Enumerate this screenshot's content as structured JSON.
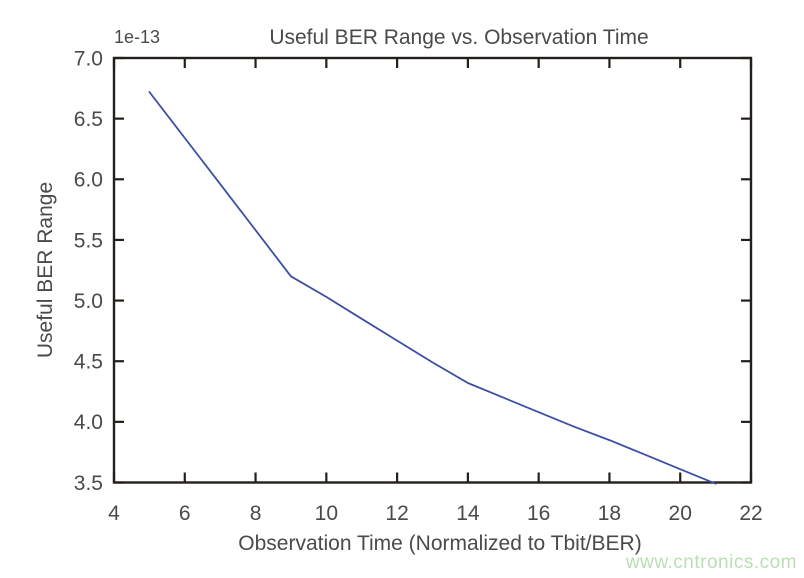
{
  "chart_data": {
    "type": "line",
    "title": "Useful BER Range vs. Observation Time",
    "xlabel": "Observation Time (Normalized to Tbit/BER)",
    "ylabel": "Useful BER Range",
    "y_offset_text": "1e-13",
    "xlim": [
      4,
      22
    ],
    "ylim": [
      3.5,
      7.0
    ],
    "x_ticks": [
      4,
      6,
      8,
      10,
      12,
      14,
      16,
      18,
      20,
      22
    ],
    "x_tick_labels": [
      "4",
      "6",
      "8",
      "10",
      "12",
      "14",
      "16",
      "18",
      "20",
      "22"
    ],
    "y_ticks": [
      3.5,
      4.0,
      4.5,
      5.0,
      5.5,
      6.0,
      6.5,
      7.0
    ],
    "y_tick_labels": [
      "3.5",
      "4.0",
      "4.5",
      "5.0",
      "5.5",
      "6.0",
      "6.5",
      "7.0"
    ],
    "grid": false,
    "legend": "none",
    "series": [
      {
        "name": "Useful BER Range",
        "x": [
          5,
          6,
          7,
          8,
          9,
          10,
          11,
          12,
          13,
          14,
          15,
          16,
          17,
          18,
          19,
          20,
          21
        ],
        "y": [
          6.72,
          6.34,
          5.96,
          5.58,
          5.2,
          5.03,
          4.85,
          4.67,
          4.49,
          4.32,
          4.2,
          4.08,
          3.96,
          3.85,
          3.73,
          3.61,
          3.49
        ],
        "color": "#3c4fa5"
      }
    ]
  },
  "colors": {
    "axis": "#241f1c",
    "text": "#4a4a4a",
    "background": "#ffffff",
    "line": "#3c4fa5",
    "watermark": "#b9dfb2"
  },
  "watermark": {
    "text": "www.cntronics.com"
  }
}
